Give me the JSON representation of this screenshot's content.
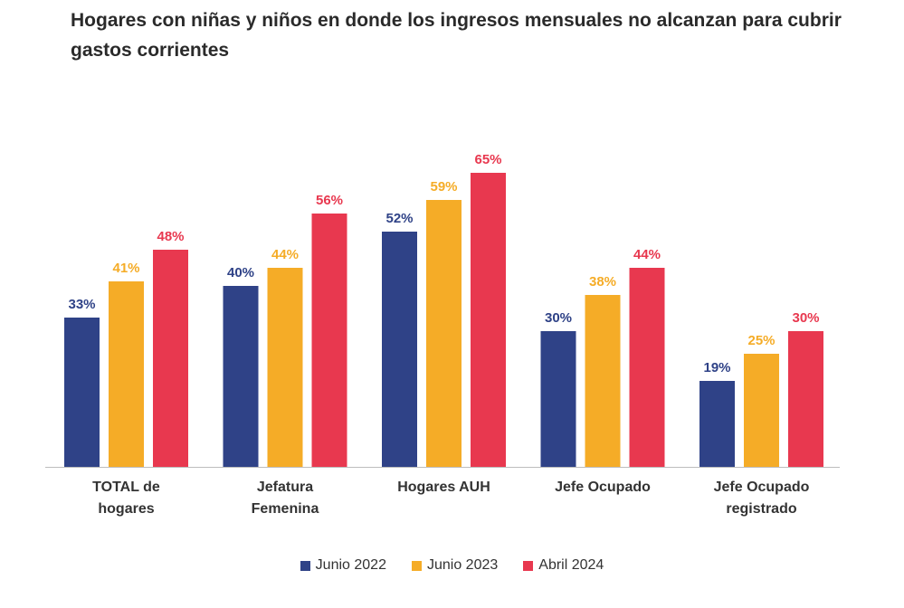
{
  "chart_data": {
    "type": "bar",
    "title": "Hogares con niñas y niños en donde los ingresos mensuales no alcanzan para cubrir gastos corrientes",
    "categories": [
      [
        "TOTAL de",
        "hogares"
      ],
      [
        "Jefatura",
        "Femenina"
      ],
      [
        "Hogares AUH"
      ],
      [
        "Jefe Ocupado"
      ],
      [
        "Jefe Ocupado",
        "registrado"
      ]
    ],
    "series": [
      {
        "name": "Junio 2022",
        "color": "#2f4287",
        "values": [
          33,
          40,
          52,
          30,
          19
        ]
      },
      {
        "name": "Junio 2023",
        "color": "#f5ac27",
        "values": [
          41,
          44,
          59,
          38,
          25
        ]
      },
      {
        "name": "Abril 2024",
        "color": "#e8384f",
        "values": [
          48,
          56,
          65,
          44,
          30
        ]
      }
    ],
    "value_suffix": "%",
    "ylim": [
      0,
      70
    ],
    "xlabel": "",
    "ylabel": "",
    "grid": false,
    "legend": "bottom-center"
  }
}
